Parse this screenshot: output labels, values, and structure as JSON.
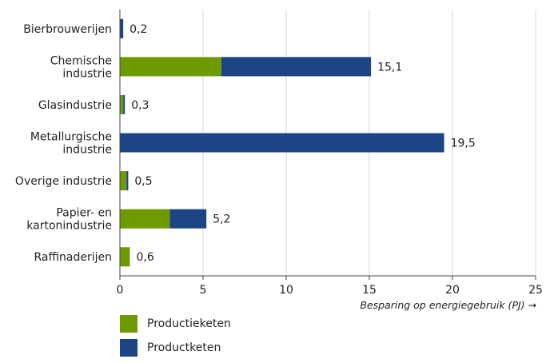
{
  "chart_data": {
    "type": "bar",
    "orientation": "horizontal",
    "stacked": true,
    "categories": [
      [
        "Bierbrouwerijen"
      ],
      [
        "Chemische",
        "industrie"
      ],
      [
        "Glasindustrie"
      ],
      [
        "Metallurgische",
        "industrie"
      ],
      [
        "Overige industrie"
      ],
      [
        "Papier- en",
        "kartonindustrie"
      ],
      [
        "Raffinaderijen"
      ]
    ],
    "series": [
      {
        "name": "Productieketen",
        "color": "#6e9a00",
        "values": [
          0.0,
          6.1,
          0.2,
          0.0,
          0.4,
          3.0,
          0.6
        ]
      },
      {
        "name": "Productketen",
        "color": "#1d4586",
        "values": [
          0.2,
          9.0,
          0.1,
          19.5,
          0.1,
          2.2,
          0.0
        ]
      }
    ],
    "data_labels": [
      "0,2",
      "15,1",
      "0,3",
      "19,5",
      "0,5",
      "5,2",
      "0,6"
    ],
    "xlabel": "Besparing op energiegebruik (PJ) →",
    "xlim": [
      0,
      25
    ],
    "xticks": [
      0,
      5,
      10,
      15,
      20,
      25
    ],
    "xtick_labels": [
      "0",
      "5",
      "10",
      "15",
      "20",
      "25"
    ],
    "grid": "vertical",
    "legend_position": "bottom-left"
  }
}
